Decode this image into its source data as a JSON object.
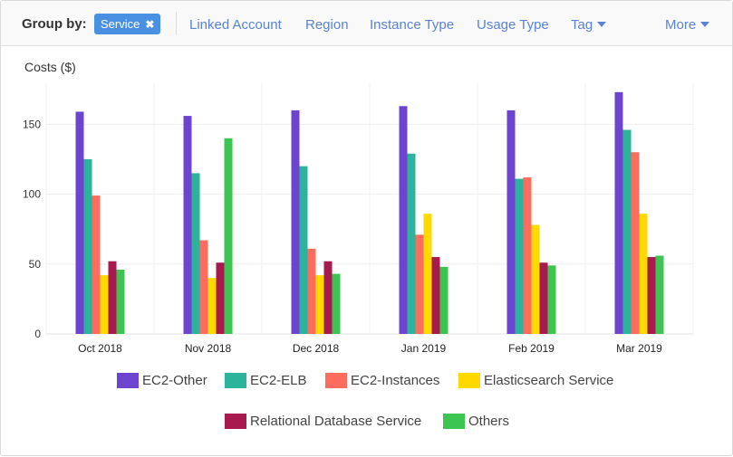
{
  "toolbar": {
    "group_by_label": "Group by:",
    "active_chip": "Service",
    "chip_close_glyph": "✖",
    "options": [
      "Linked Account",
      "Region",
      "Instance Type",
      "Usage Type",
      "Tag",
      "More"
    ]
  },
  "chart_data": {
    "type": "bar",
    "ylabel": "Costs ($)",
    "ylim": [
      0,
      180
    ],
    "yticks": [
      0,
      50,
      100,
      150
    ],
    "grid": true,
    "categories": [
      "Oct 2018",
      "Nov 2018",
      "Dec 2018",
      "Jan 2019",
      "Feb 2019",
      "Mar 2019"
    ],
    "series": [
      {
        "name": "EC2-Other",
        "color": "#6c44cf",
        "values": [
          159,
          156,
          160,
          163,
          160,
          173
        ]
      },
      {
        "name": "EC2-ELB",
        "color": "#2bb39c",
        "values": [
          125,
          115,
          120,
          129,
          111,
          146
        ]
      },
      {
        "name": "EC2-Instances",
        "color": "#fd6c5d",
        "values": [
          99,
          67,
          61,
          71,
          112,
          130
        ]
      },
      {
        "name": "Elasticsearch Service",
        "color": "#ffd900",
        "values": [
          42,
          40,
          42,
          86,
          78,
          86
        ]
      },
      {
        "name": "Relational Database Service",
        "color": "#a8194d",
        "values": [
          52,
          51,
          52,
          55,
          51,
          55
        ]
      },
      {
        "name": "Others",
        "color": "#3ec551",
        "values": [
          46,
          140,
          43,
          48,
          49,
          56
        ]
      }
    ],
    "legend_position": "bottom"
  }
}
